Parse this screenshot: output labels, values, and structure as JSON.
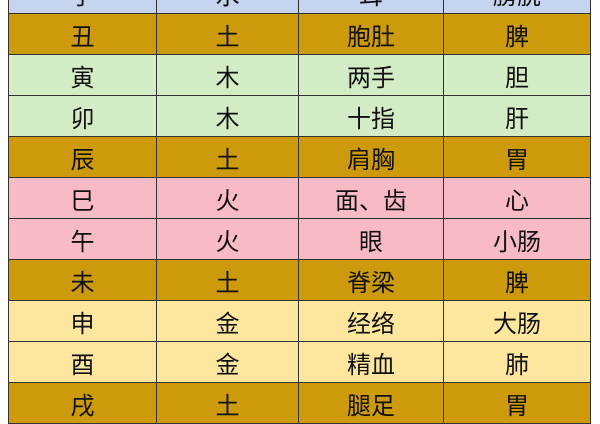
{
  "colors": {
    "water": "#c6d4ef",
    "earth": "#cc9a0a",
    "wood": "#d3ecc6",
    "fire": "#f8bac4",
    "metal": "#fde79e"
  },
  "rows": [
    {
      "cells": [
        "子",
        "水",
        "耳",
        "膀胱"
      ],
      "element": "water"
    },
    {
      "cells": [
        "丑",
        "土",
        "胞肚",
        "脾"
      ],
      "element": "earth"
    },
    {
      "cells": [
        "寅",
        "木",
        "两手",
        "胆"
      ],
      "element": "wood"
    },
    {
      "cells": [
        "卯",
        "木",
        "十指",
        "肝"
      ],
      "element": "wood"
    },
    {
      "cells": [
        "辰",
        "土",
        "肩胸",
        "胃"
      ],
      "element": "earth"
    },
    {
      "cells": [
        "巳",
        "火",
        "面、齿",
        "心"
      ],
      "element": "fire"
    },
    {
      "cells": [
        "午",
        "火",
        "眼",
        "小肠"
      ],
      "element": "fire"
    },
    {
      "cells": [
        "未",
        "土",
        "脊梁",
        "脾"
      ],
      "element": "earth"
    },
    {
      "cells": [
        "申",
        "金",
        "经络",
        "大肠"
      ],
      "element": "metal"
    },
    {
      "cells": [
        "酉",
        "金",
        "精血",
        "肺"
      ],
      "element": "metal"
    },
    {
      "cells": [
        "戌",
        "土",
        "腿足",
        "胃"
      ],
      "element": "earth"
    }
  ]
}
